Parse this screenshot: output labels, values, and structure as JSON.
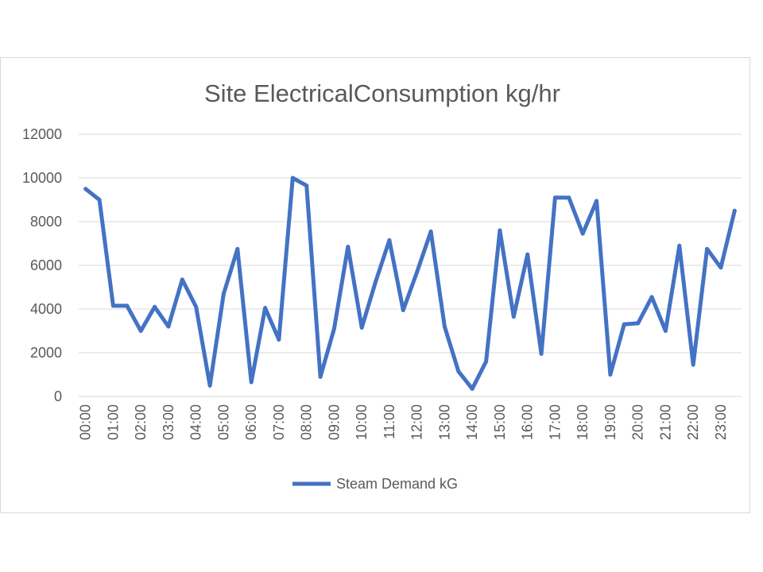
{
  "chart_data": {
    "type": "line",
    "title": "Site ElectricalConsumption kg/hr",
    "xlabel": "",
    "ylabel": "",
    "ylim": [
      0,
      12000
    ],
    "yticks": [
      0,
      2000,
      4000,
      6000,
      8000,
      10000,
      12000
    ],
    "x": [
      "00:00",
      "00:30",
      "01:00",
      "01:30",
      "02:00",
      "02:30",
      "03:00",
      "03:30",
      "04:00",
      "04:30",
      "05:00",
      "05:30",
      "06:00",
      "06:30",
      "07:00",
      "07:30",
      "08:00",
      "08:30",
      "09:00",
      "09:30",
      "10:00",
      "10:30",
      "11:00",
      "11:30",
      "12:00",
      "12:30",
      "13:00",
      "13:30",
      "14:00",
      "14:30",
      "15:00",
      "15:30",
      "16:00",
      "16:30",
      "17:00",
      "17:30",
      "18:00",
      "18:30",
      "19:00",
      "19:30",
      "20:00",
      "20:30",
      "21:00",
      "21:30",
      "22:00",
      "22:30",
      "23:00",
      "23:30"
    ],
    "xtick_labels": [
      "00:00",
      "01:00",
      "02:00",
      "03:00",
      "04:00",
      "05:00",
      "06:00",
      "07:00",
      "08:00",
      "09:00",
      "10:00",
      "11:00",
      "12:00",
      "13:00",
      "14:00",
      "15:00",
      "16:00",
      "17:00",
      "18:00",
      "19:00",
      "20:00",
      "21:00",
      "22:00",
      "23:00"
    ],
    "grid": true,
    "legend_position": "bottom",
    "series": [
      {
        "name": "Steam Demand kG",
        "color": "#4472c4",
        "values": [
          9500,
          9000,
          4150,
          4150,
          3000,
          4100,
          3200,
          5350,
          4100,
          500,
          4700,
          6750,
          650,
          4050,
          2600,
          10000,
          9650,
          900,
          3100,
          6850,
          3150,
          5250,
          7150,
          3950,
          5700,
          7550,
          3200,
          1150,
          350,
          1600,
          7600,
          3650,
          6500,
          1950,
          9100,
          9100,
          7450,
          8950,
          1000,
          3300,
          3350,
          4550,
          3000,
          6900,
          1450,
          6750,
          5900,
          8500
        ]
      }
    ]
  }
}
